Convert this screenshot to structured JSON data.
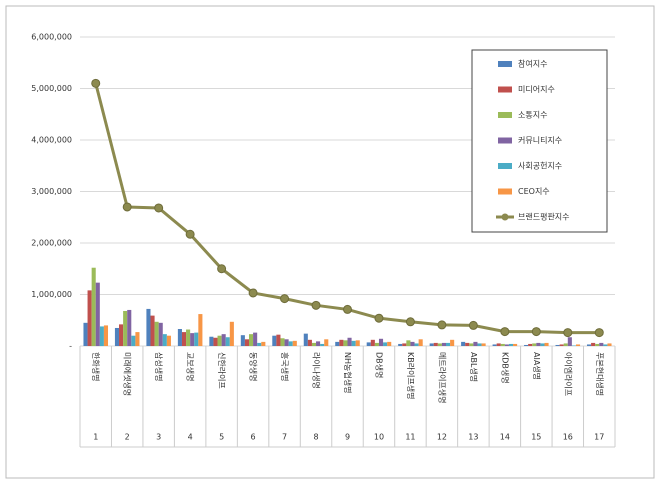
{
  "chart_data": {
    "type": "bar",
    "categories": [
      "한화생명",
      "미래에셋생명",
      "삼성생명",
      "교보생명",
      "신한라이프",
      "동양생명",
      "흥국생명",
      "라이나생명",
      "NH농협생명",
      "DB생명",
      "KB라이프생명",
      "메트라이프생명",
      "ABL생명",
      "KDB생명",
      "AIA생명",
      "아이엠라이프",
      "푸본현대생명"
    ],
    "ranks": [
      1,
      2,
      3,
      4,
      5,
      6,
      7,
      8,
      9,
      10,
      11,
      12,
      13,
      14,
      15,
      16,
      17
    ],
    "series": [
      {
        "name": "참여지수",
        "color": "#4f81bd",
        "values": [
          450000,
          350000,
          720000,
          330000,
          180000,
          210000,
          200000,
          240000,
          80000,
          70000,
          40000,
          50000,
          80000,
          30000,
          20000,
          20000,
          30000
        ]
      },
      {
        "name": "미디어지수",
        "color": "#c0504d",
        "values": [
          1080000,
          420000,
          590000,
          270000,
          160000,
          130000,
          220000,
          120000,
          120000,
          120000,
          50000,
          60000,
          60000,
          50000,
          40000,
          30000,
          60000
        ]
      },
      {
        "name": "소통지수",
        "color": "#9bbb59",
        "values": [
          1520000,
          680000,
          470000,
          320000,
          200000,
          230000,
          150000,
          60000,
          110000,
          60000,
          110000,
          50000,
          50000,
          40000,
          50000,
          50000,
          40000
        ]
      },
      {
        "name": "커뮤니티지수",
        "color": "#8064a2",
        "values": [
          1230000,
          700000,
          450000,
          250000,
          230000,
          260000,
          130000,
          90000,
          160000,
          140000,
          80000,
          60000,
          80000,
          30000,
          60000,
          170000,
          60000
        ]
      },
      {
        "name": "사회공헌지수",
        "color": "#4bacc6",
        "values": [
          380000,
          200000,
          230000,
          260000,
          170000,
          60000,
          90000,
          40000,
          100000,
          70000,
          50000,
          60000,
          50000,
          40000,
          50000,
          10000,
          30000
        ]
      },
      {
        "name": "CEO지수",
        "color": "#f79646",
        "values": [
          400000,
          270000,
          200000,
          620000,
          470000,
          80000,
          100000,
          130000,
          110000,
          80000,
          130000,
          120000,
          50000,
          40000,
          60000,
          30000,
          50000
        ]
      },
      {
        "name": "브랜드평판지수",
        "color": "#8c8a4f",
        "type": "line",
        "values": [
          5100000,
          2700000,
          2680000,
          2170000,
          1500000,
          1030000,
          920000,
          790000,
          710000,
          540000,
          470000,
          410000,
          400000,
          280000,
          280000,
          260000,
          260000
        ]
      }
    ],
    "ylim": [
      0,
      6000000
    ],
    "yticks": [
      {
        "value": 0,
        "label": "-"
      },
      {
        "value": 1000000,
        "label": "1,000,000"
      },
      {
        "value": 2000000,
        "label": "2,000,000"
      },
      {
        "value": 3000000,
        "label": "3,000,000"
      },
      {
        "value": 4000000,
        "label": "4,000,000"
      },
      {
        "value": 5000000,
        "label": "5,000,000"
      },
      {
        "value": 6000000,
        "label": "6,000,000"
      }
    ],
    "grid": true,
    "legend": "upper right"
  }
}
